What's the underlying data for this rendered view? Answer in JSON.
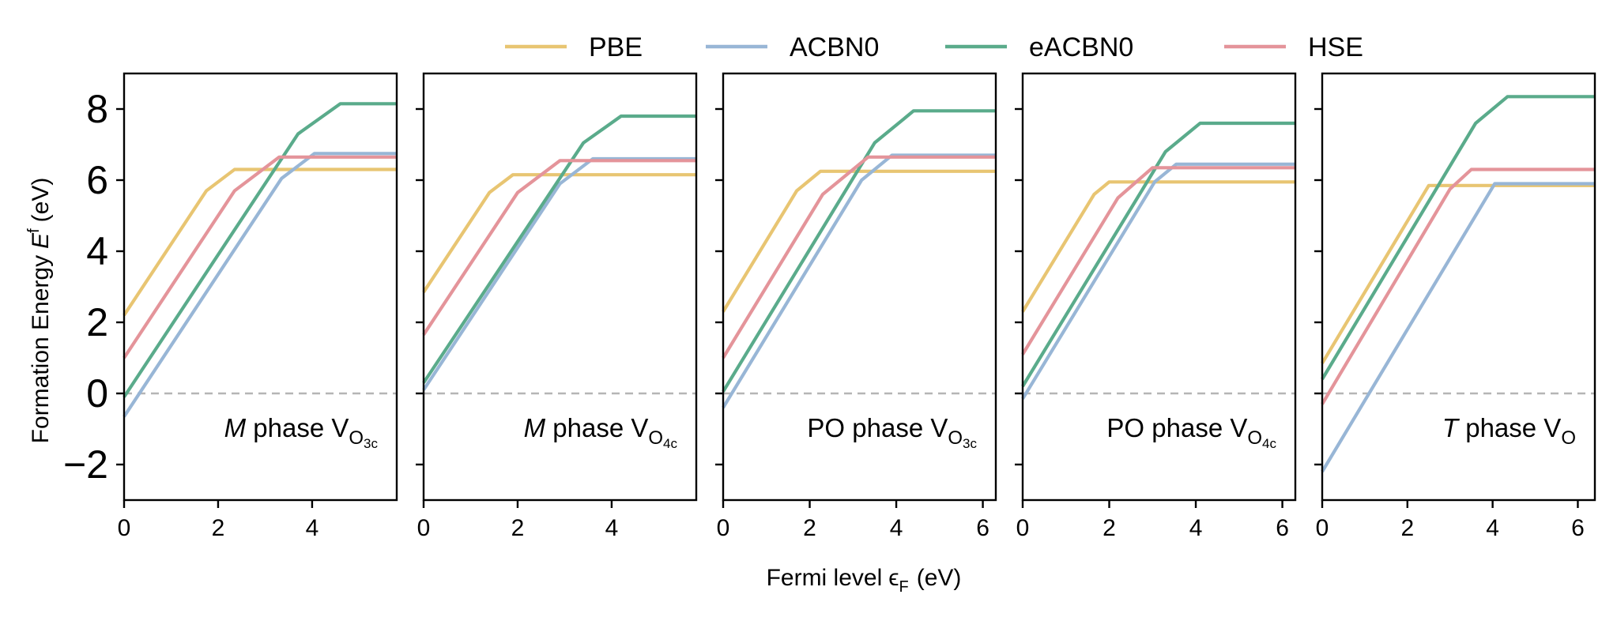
{
  "chart_data": {
    "type": "line",
    "ylabel": "Formation Energy",
    "ylabel_symbol": "E",
    "ylabel_superscript": "f",
    "ylabel_unit": "(eV)",
    "xlabel": "Fermi level",
    "xlabel_symbol": "ϵ",
    "xlabel_subscript": "F",
    "xlabel_unit": "(eV)",
    "ylim": [
      -3,
      9
    ],
    "yticks": [
      -2,
      0,
      2,
      4,
      6,
      8
    ],
    "ytick_labels": [
      "−2",
      "0",
      "2",
      "4",
      "6",
      "8"
    ],
    "reference_line_y": 0,
    "legend": [
      {
        "name": "PBE",
        "color": "#e8c572"
      },
      {
        "name": "ACBN0",
        "color": "#98b6d6"
      },
      {
        "name": "eACBN0",
        "color": "#5aab8b"
      },
      {
        "name": "HSE",
        "color": "#e4949a"
      }
    ],
    "panels": [
      {
        "label_italic": "M",
        "label_main": " phase V",
        "label_sub": "O",
        "label_subsub": "3c",
        "xlim": [
          0,
          5.8
        ],
        "xticks": [
          0,
          2,
          4
        ],
        "series": [
          {
            "name": "PBE",
            "points": [
              [
                0,
                2.2
              ],
              [
                1.75,
                5.7
              ],
              [
                2.35,
                6.3
              ],
              [
                5.8,
                6.3
              ]
            ]
          },
          {
            "name": "ACBN0",
            "points": [
              [
                0,
                -0.65
              ],
              [
                3.35,
                6.05
              ],
              [
                4.05,
                6.75
              ],
              [
                5.8,
                6.75
              ]
            ]
          },
          {
            "name": "eACBN0",
            "points": [
              [
                0,
                -0.1
              ],
              [
                3.7,
                7.3
              ],
              [
                4.6,
                8.15
              ],
              [
                5.8,
                8.15
              ]
            ]
          },
          {
            "name": "HSE",
            "points": [
              [
                0,
                1.0
              ],
              [
                2.35,
                5.7
              ],
              [
                3.3,
                6.65
              ],
              [
                5.8,
                6.65
              ]
            ]
          }
        ]
      },
      {
        "label_italic": "M",
        "label_main": " phase V",
        "label_sub": "O",
        "label_subsub": "4c",
        "xlim": [
          0,
          5.8
        ],
        "xticks": [
          0,
          2,
          4
        ],
        "series": [
          {
            "name": "PBE",
            "points": [
              [
                0,
                2.85
              ],
              [
                1.4,
                5.65
              ],
              [
                1.9,
                6.15
              ],
              [
                5.8,
                6.15
              ]
            ]
          },
          {
            "name": "ACBN0",
            "points": [
              [
                0,
                0.1
              ],
              [
                2.9,
                5.9
              ],
              [
                3.6,
                6.6
              ],
              [
                5.8,
                6.6
              ]
            ]
          },
          {
            "name": "eACBN0",
            "points": [
              [
                0,
                0.3
              ],
              [
                3.4,
                7.05
              ],
              [
                4.2,
                7.8
              ],
              [
                5.8,
                7.8
              ]
            ]
          },
          {
            "name": "HSE",
            "points": [
              [
                0,
                1.65
              ],
              [
                2.0,
                5.65
              ],
              [
                2.9,
                6.55
              ],
              [
                5.8,
                6.55
              ]
            ]
          }
        ]
      },
      {
        "label_italic": "",
        "label_main": "PO phase V",
        "label_sub": "O",
        "label_subsub": "3c",
        "xlim": [
          0,
          6.3
        ],
        "xticks": [
          0,
          2,
          4,
          6
        ],
        "series": [
          {
            "name": "PBE",
            "points": [
              [
                0,
                2.3
              ],
              [
                1.7,
                5.7
              ],
              [
                2.25,
                6.25
              ],
              [
                6.3,
                6.25
              ]
            ]
          },
          {
            "name": "ACBN0",
            "points": [
              [
                0,
                -0.4
              ],
              [
                3.2,
                6.0
              ],
              [
                3.9,
                6.7
              ],
              [
                6.3,
                6.7
              ]
            ]
          },
          {
            "name": "eACBN0",
            "points": [
              [
                0,
                0.05
              ],
              [
                3.5,
                7.05
              ],
              [
                4.4,
                7.95
              ],
              [
                6.3,
                7.95
              ]
            ]
          },
          {
            "name": "HSE",
            "points": [
              [
                0,
                1.0
              ],
              [
                2.3,
                5.6
              ],
              [
                3.35,
                6.65
              ],
              [
                6.3,
                6.65
              ]
            ]
          }
        ]
      },
      {
        "label_italic": "",
        "label_main": "PO phase V",
        "label_sub": "O",
        "label_subsub": "4c",
        "xlim": [
          0,
          6.3
        ],
        "xticks": [
          0,
          2,
          4,
          6
        ],
        "series": [
          {
            "name": "PBE",
            "points": [
              [
                0,
                2.3
              ],
              [
                1.65,
                5.6
              ],
              [
                2.0,
                5.95
              ],
              [
                6.3,
                5.95
              ]
            ]
          },
          {
            "name": "ACBN0",
            "points": [
              [
                0,
                -0.15
              ],
              [
                3.05,
                5.95
              ],
              [
                3.55,
                6.45
              ],
              [
                6.3,
                6.45
              ]
            ]
          },
          {
            "name": "eACBN0",
            "points": [
              [
                0,
                0.2
              ],
              [
                3.3,
                6.8
              ],
              [
                4.1,
                7.6
              ],
              [
                6.3,
                7.6
              ]
            ]
          },
          {
            "name": "HSE",
            "points": [
              [
                0,
                1.1
              ],
              [
                2.2,
                5.5
              ],
              [
                3.0,
                6.35
              ],
              [
                6.3,
                6.35
              ]
            ]
          }
        ]
      },
      {
        "label_italic": "T",
        "label_main": " phase V",
        "label_sub": "O",
        "label_subsub": "",
        "xlim": [
          0,
          6.4
        ],
        "xticks": [
          0,
          2,
          4,
          6
        ],
        "series": [
          {
            "name": "PBE",
            "points": [
              [
                0,
                0.85
              ],
              [
                2.5,
                5.85
              ],
              [
                6.4,
                5.85
              ]
            ]
          },
          {
            "name": "ACBN0",
            "points": [
              [
                0,
                -2.2
              ],
              [
                4.05,
                5.9
              ],
              [
                6.4,
                5.9
              ]
            ]
          },
          {
            "name": "eACBN0",
            "points": [
              [
                0,
                0.4
              ],
              [
                3.6,
                7.6
              ],
              [
                4.35,
                8.35
              ],
              [
                6.4,
                8.35
              ]
            ]
          },
          {
            "name": "HSE",
            "points": [
              [
                0,
                -0.3
              ],
              [
                3.0,
                5.75
              ],
              [
                3.5,
                6.3
              ],
              [
                6.4,
                6.3
              ]
            ]
          }
        ]
      }
    ]
  }
}
